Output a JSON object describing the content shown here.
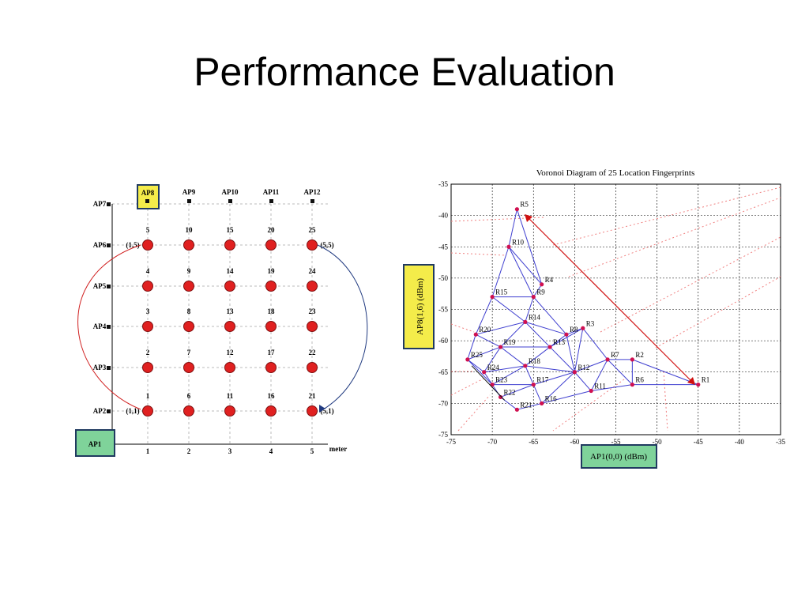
{
  "slide": {
    "title": "Performance Evaluation"
  },
  "grid": {
    "unit": "meter",
    "x_ticks": [
      "1",
      "2",
      "3",
      "4",
      "5"
    ],
    "ap_row_labels": [
      "AP7",
      "AP6",
      "AP5",
      "AP4",
      "AP3",
      "AP2"
    ],
    "top_aps": [
      "AP8",
      "AP9",
      "AP10",
      "AP11",
      "AP12"
    ],
    "origin_ap": "AP1",
    "point_numbers": [
      [
        "5",
        "10",
        "15",
        "20",
        "25"
      ],
      [
        "4",
        "9",
        "14",
        "19",
        "24"
      ],
      [
        "3",
        "8",
        "13",
        "18",
        "23"
      ],
      [
        "2",
        "7",
        "12",
        "17",
        "22"
      ],
      [
        "1",
        "6",
        "11",
        "16",
        "21"
      ]
    ],
    "corner_labels": {
      "top_left": "(1,5)",
      "top_right": "(5,5)",
      "bottom_left": "(1,1)",
      "bottom_right": "(5,1)"
    },
    "colors": {
      "point": "#e02020",
      "ap8_box": "#f4ec4a",
      "ap1_box": "#7fd39a",
      "left_arc": "#d02020",
      "right_arc": "#203a80"
    }
  },
  "voronoi": {
    "title": "Voronoi Diagram of 25 Location Fingerprints",
    "xlabel": "AP1(0,0) (dBm)",
    "ylabel": "AP8(1,6) (dBm)",
    "x_ticks": [
      "-75",
      "-70",
      "-65",
      "-60",
      "-55",
      "-50",
      "-45",
      "-40",
      "-35"
    ],
    "y_ticks": [
      "-35",
      "-40",
      "-45",
      "-50",
      "-55",
      "-60",
      "-65",
      "-70",
      "-75"
    ],
    "colors": {
      "edge": "#4040d0",
      "node": "#d01050",
      "voronoi": "#f08080",
      "arrow": "#d01010",
      "ylabel_box": "#f4ec4a",
      "xlabel_box": "#7fd39a"
    }
  },
  "chart_data": {
    "type": "scatter",
    "title": "Voronoi Diagram of 25 Location Fingerprints",
    "xlabel": "AP1(0,0) (dBm)",
    "ylabel": "AP8(1,6) (dBm)",
    "xlim": [
      -75,
      -35
    ],
    "ylim": [
      -75,
      -35
    ],
    "grid": true,
    "points": [
      {
        "label": "R5",
        "x": -67,
        "y": -39
      },
      {
        "label": "R10",
        "x": -68,
        "y": -45
      },
      {
        "label": "R4",
        "x": -64,
        "y": -51
      },
      {
        "label": "R15",
        "x": -70,
        "y": -53
      },
      {
        "label": "R9",
        "x": -65,
        "y": -53
      },
      {
        "label": "R14",
        "x": -66,
        "y": -57
      },
      {
        "label": "R8",
        "x": -61,
        "y": -59
      },
      {
        "label": "R3",
        "x": -59,
        "y": -58
      },
      {
        "label": "R20",
        "x": -72,
        "y": -59
      },
      {
        "label": "R19",
        "x": -69,
        "y": -61
      },
      {
        "label": "R13",
        "x": -63,
        "y": -61
      },
      {
        "label": "R7",
        "x": -56,
        "y": -63
      },
      {
        "label": "R2",
        "x": -53,
        "y": -63
      },
      {
        "label": "R25",
        "x": -73,
        "y": -63
      },
      {
        "label": "R24",
        "x": -71,
        "y": -65
      },
      {
        "label": "R18",
        "x": -66,
        "y": -64
      },
      {
        "label": "R12",
        "x": -60,
        "y": -65
      },
      {
        "label": "R23",
        "x": -70,
        "y": -67
      },
      {
        "label": "R17",
        "x": -65,
        "y": -67
      },
      {
        "label": "R6",
        "x": -53,
        "y": -67
      },
      {
        "label": "R1",
        "x": -45,
        "y": -67
      },
      {
        "label": "R11",
        "x": -58,
        "y": -68
      },
      {
        "label": "R22",
        "x": -69,
        "y": -69
      },
      {
        "label": "R16",
        "x": -64,
        "y": -70
      },
      {
        "label": "R21",
        "x": -67,
        "y": -71
      }
    ]
  }
}
